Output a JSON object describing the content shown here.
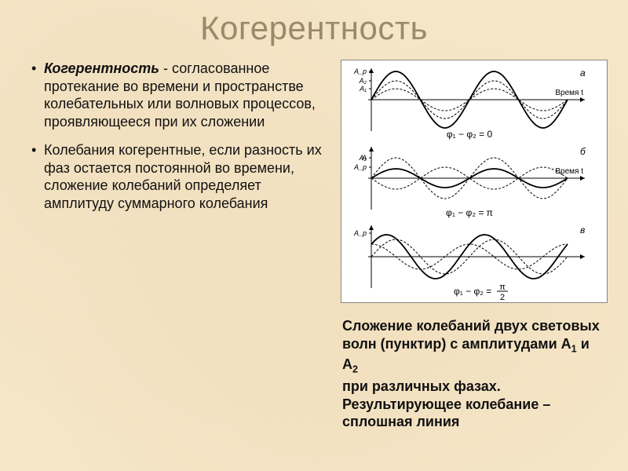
{
  "title": "Когерентность",
  "bullets": {
    "item1_term": "Когерентность",
    "item1_rest": " -  согласованное протекание во времени и пространстве колебательных или волновых процессов, проявляющееся при их сложении",
    "item2": "Колебания когерентные, если разность их фаз остается постоянной во времени, сложение колебаний определяет амплитуду суммарного колебания"
  },
  "caption": {
    "line1_a": "Сложение колебаний двух световых волн (пунктир) с амплитудами А",
    "line1_sub1": "1",
    "line1_b": " и А",
    "line1_sub2": "2",
    "line2": "при различных фазах. Результирующее колебание – сплошная линия"
  },
  "diagram": {
    "background_color": "#ffffff",
    "axis_color": "#000000",
    "wave_color": "#000000",
    "panels": [
      {
        "phase_label": "φ₁ − φ₂ = 0",
        "y_labels": [
          "A_p",
          "A₂",
          "A₁"
        ],
        "y_positions": [
          36,
          24,
          14
        ],
        "x_label": "Время t",
        "tag": "а",
        "waves": [
          {
            "amp": 14,
            "dash": "3,2",
            "phase": 0,
            "width": 1
          },
          {
            "amp": 24,
            "dash": "3,2",
            "phase": 0,
            "width": 1
          },
          {
            "amp": 36,
            "dash": "",
            "phase": 0,
            "width": 1.8
          }
        ]
      },
      {
        "phase_label": "φ₁ − φ₂ = π",
        "y_labels": [
          "A",
          "A_p",
          "A₂"
        ],
        "y_positions": [
          26,
          14,
          26
        ],
        "x_label": "Время t",
        "tag": "б",
        "waves": [
          {
            "amp": 26,
            "dash": "3,2",
            "phase": 0,
            "width": 1
          },
          {
            "amp": 14,
            "dash": "3,2",
            "phase": 3.14159,
            "width": 1
          },
          {
            "amp": 12,
            "dash": "",
            "phase": 0,
            "width": 1.8
          }
        ]
      },
      {
        "phase_label": "φ₁ − φ₂ = π/2",
        "y_labels": [
          "A_p"
        ],
        "y_positions": [
          30
        ],
        "x_label": "",
        "tag": "в",
        "fraction": {
          "num": "π",
          "den": "2"
        },
        "waves": [
          {
            "amp": 22,
            "dash": "3,2",
            "phase": 0,
            "width": 1
          },
          {
            "amp": 16,
            "dash": "3,2",
            "phase": 1.5708,
            "width": 1
          },
          {
            "amp": 28,
            "dash": "",
            "phase": 0.6,
            "width": 1.8
          }
        ]
      }
    ]
  }
}
